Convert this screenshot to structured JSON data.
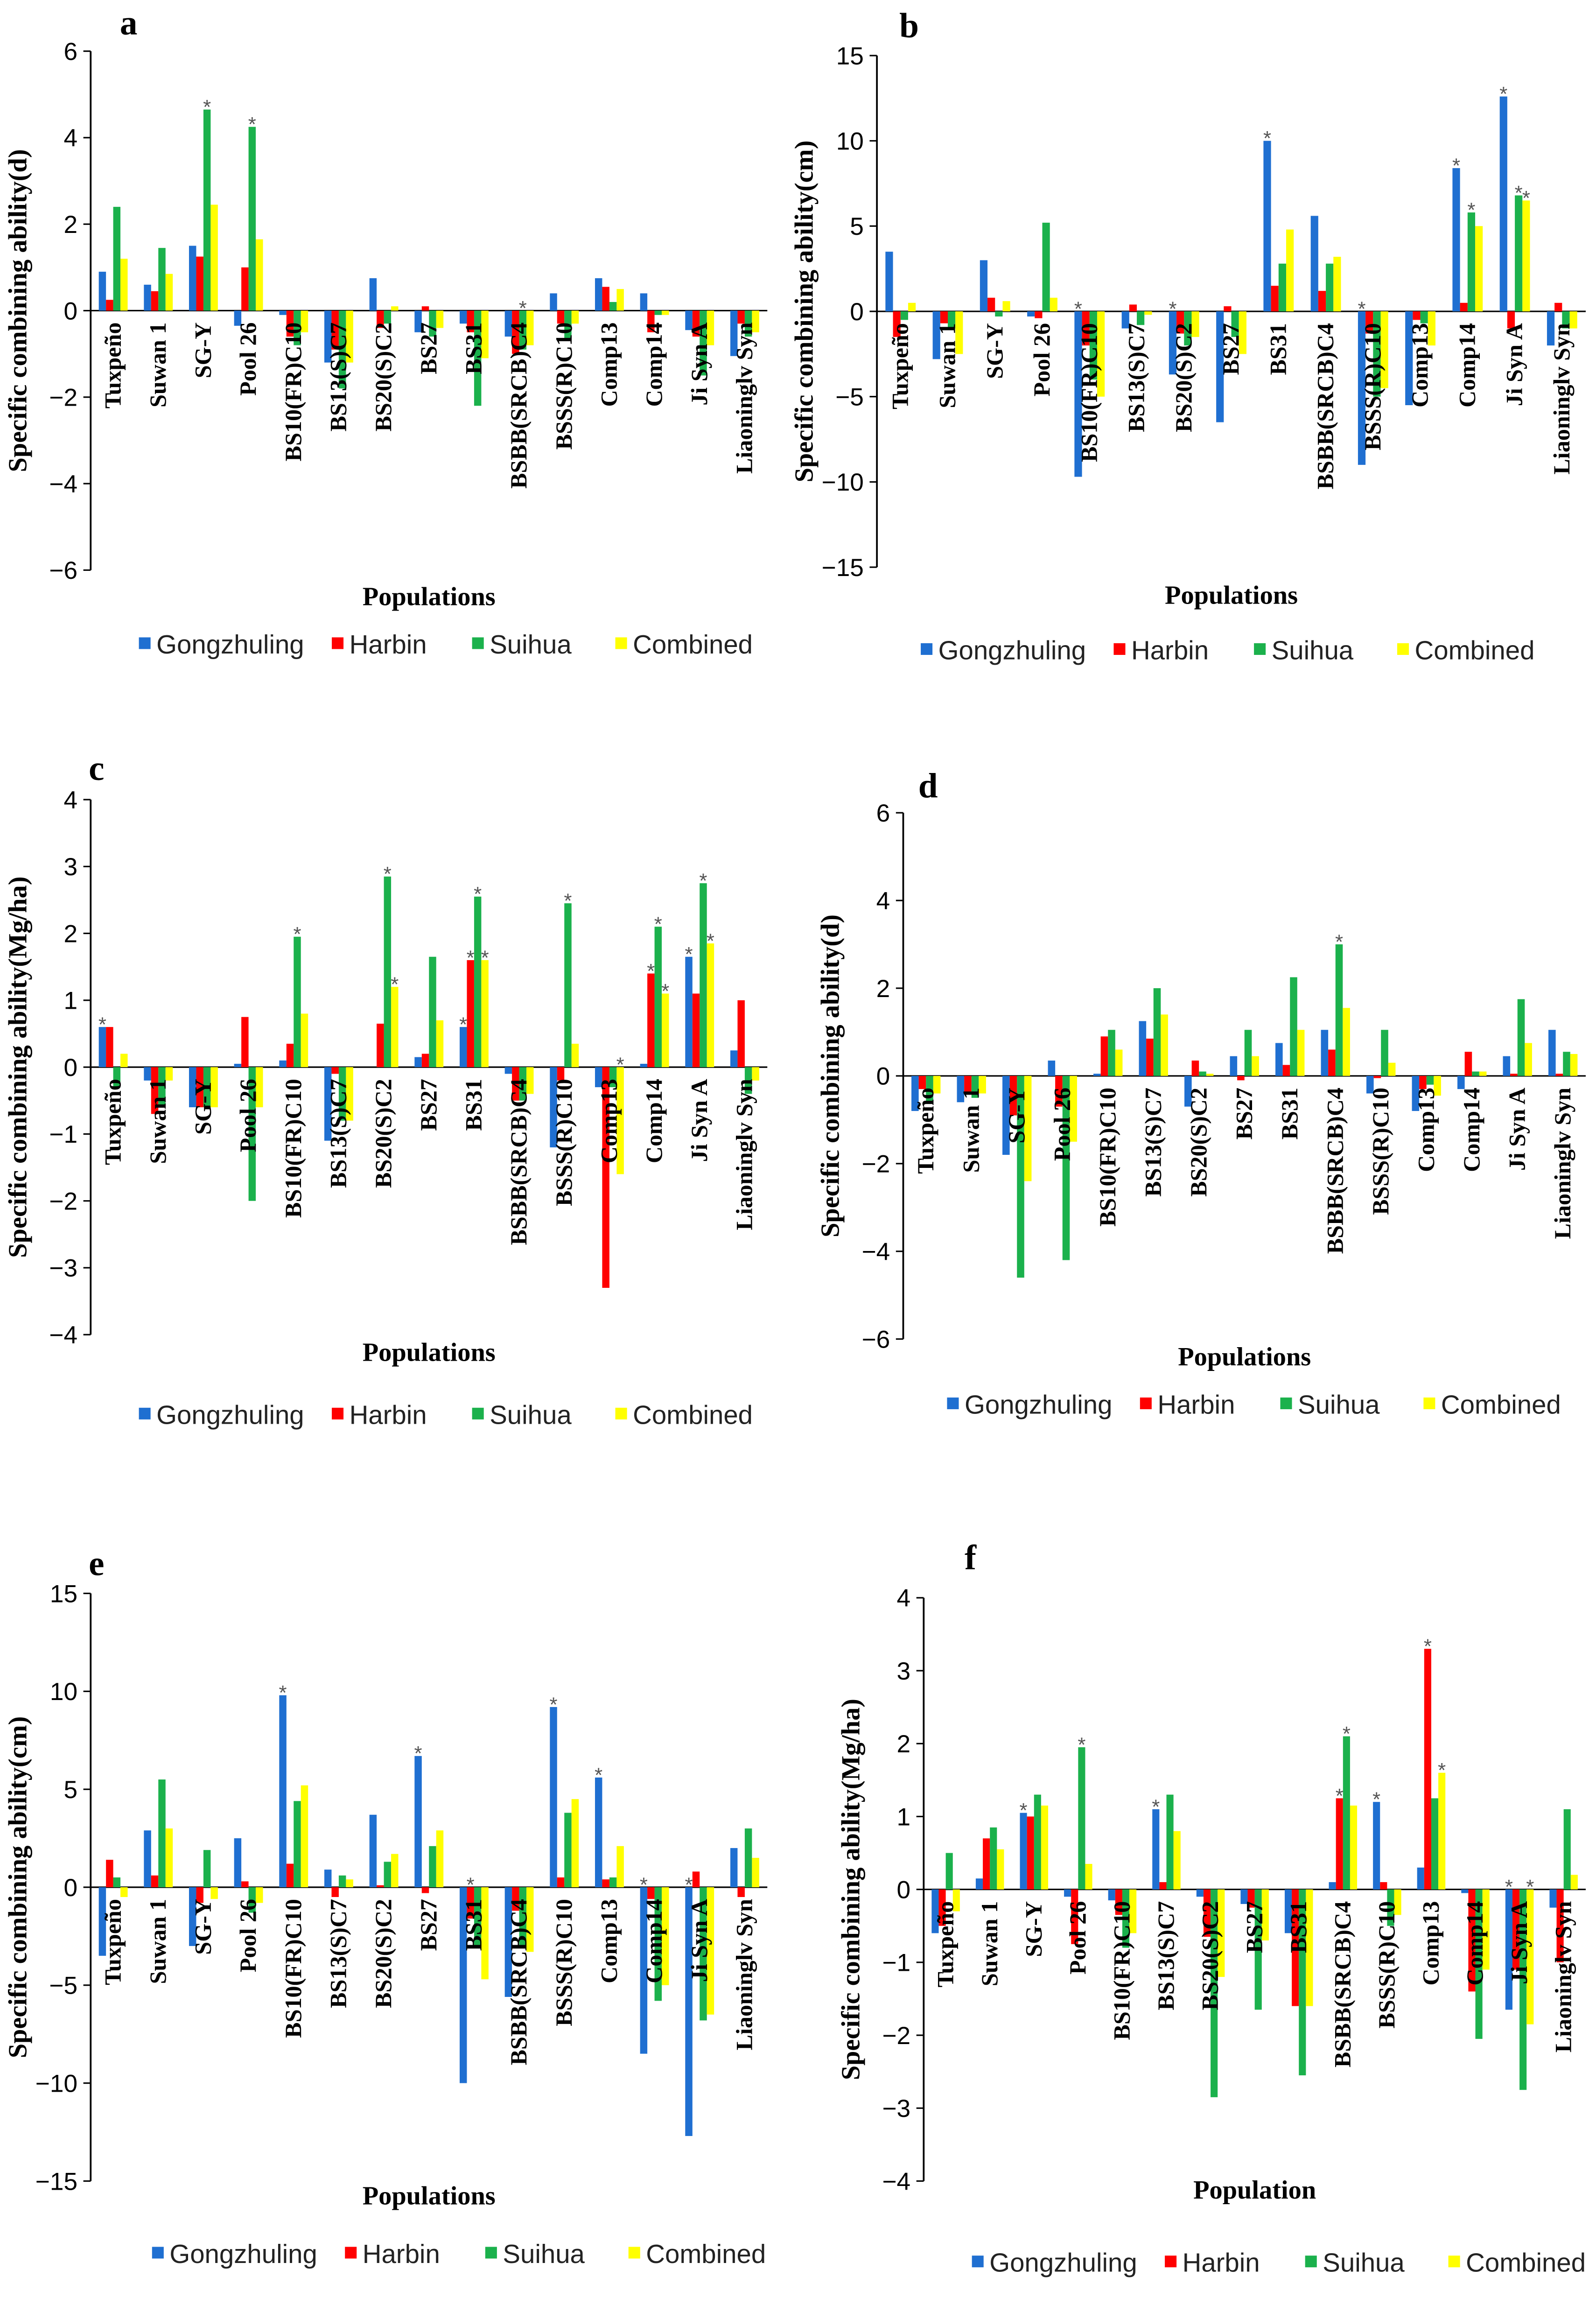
{
  "colors": {
    "Gongzhuling": "#1f6fd1",
    "Harbin": "#ff0000",
    "Suihua": "#1bb14c",
    "Combined": "#ffff00"
  },
  "series_names": [
    "Gongzhuling",
    "Harbin",
    "Suihua",
    "Combined"
  ],
  "chart_data": [
    {
      "type": "bar",
      "panel": "a",
      "ylabel": "Specific combining ability(d)",
      "xlabel": "Populations",
      "ylim": [
        -6,
        6
      ],
      "yticks": [
        -6,
        -4,
        -2,
        0,
        2,
        4,
        6
      ],
      "legend": "bottom",
      "categories": [
        "Tuxpeño",
        "Suwan 1",
        "SG-Y",
        "Pool 26",
        "BS10(FR)C10",
        "BS13(S)C7",
        "BS20(S)C2",
        "BS27",
        "BS31",
        "BSBB(SRCB)C4",
        "BSSS(R)C10",
        "Comp13",
        "Comp14",
        "Ji Syn A",
        "Liaoninglv Syn"
      ],
      "series": [
        {
          "name": "Gongzhuling",
          "values": [
            0.9,
            0.6,
            1.5,
            -0.35,
            -0.1,
            -1.2,
            0.75,
            -0.5,
            -0.3,
            -0.6,
            0.4,
            0.75,
            0.4,
            -0.45,
            -1.05
          ]
        },
        {
          "name": "Harbin",
          "values": [
            0.25,
            0.45,
            1.25,
            1.0,
            -0.6,
            -0.9,
            -0.4,
            0.1,
            -0.5,
            -1.0,
            -0.3,
            0.55,
            -0.5,
            -0.6,
            -0.3
          ]
        },
        {
          "name": "Suihua",
          "values": [
            2.4,
            1.45,
            4.65,
            4.25,
            -0.8,
            -1.8,
            -0.3,
            -0.6,
            -2.2,
            -0.9,
            -0.7,
            0.2,
            -0.1,
            -1.5,
            -0.6
          ]
        },
        {
          "name": "Combined",
          "values": [
            1.2,
            0.85,
            2.45,
            1.65,
            -0.5,
            -1.2,
            0.1,
            -0.4,
            -1.1,
            -0.8,
            -0.3,
            0.5,
            -0.1,
            -0.8,
            -0.5
          ]
        }
      ],
      "significant": [
        [
          2,
          2
        ],
        [
          3,
          2
        ],
        [
          9,
          2
        ]
      ]
    },
    {
      "type": "bar",
      "panel": "b",
      "ylabel": "Specific combining ability(cm)",
      "xlabel": "Populations",
      "ylim": [
        -15,
        15
      ],
      "yticks": [
        -15,
        -10,
        -5,
        0,
        5,
        10,
        15
      ],
      "legend": "bottom",
      "categories": [
        "Tuxpeño",
        "Suwan 1",
        "SG-Y",
        "Pool 26",
        "BS10(FR)C10",
        "BS13(S)C7",
        "BS20(S)C2",
        "BS27",
        "BS31",
        "BSBB(SRCB)C4",
        "BSSS(R)C10",
        "Comp13",
        "Comp14",
        "Ji Syn A",
        "Liaoninglv Syn"
      ],
      "series": [
        {
          "name": "Gongzhuling",
          "values": [
            3.5,
            -2.8,
            3.0,
            -0.3,
            -9.7,
            -1.0,
            -3.7,
            -6.5,
            10.0,
            5.6,
            -9.0,
            -5.5,
            8.4,
            12.6,
            -2.0
          ]
        },
        {
          "name": "Harbin",
          "values": [
            -1.5,
            -0.7,
            0.8,
            -0.4,
            -2.0,
            0.4,
            -1.3,
            0.3,
            1.5,
            1.2,
            -1.3,
            -0.5,
            0.5,
            -1.0,
            0.5
          ]
        },
        {
          "name": "Suihua",
          "values": [
            -0.5,
            -1.0,
            -0.3,
            5.2,
            -4.0,
            -0.8,
            -2.0,
            -1.5,
            2.8,
            2.8,
            -5.0,
            -0.7,
            5.8,
            6.8,
            -1.0
          ]
        },
        {
          "name": "Combined",
          "values": [
            0.5,
            -2.5,
            0.6,
            0.8,
            -5.0,
            -0.2,
            -1.5,
            -2.5,
            4.8,
            3.2,
            -4.5,
            -2.0,
            5.0,
            6.5,
            -1.0
          ]
        }
      ],
      "significant": [
        [
          4,
          0
        ],
        [
          8,
          0
        ],
        [
          10,
          0
        ],
        [
          12,
          0
        ],
        [
          12,
          2
        ],
        [
          13,
          0
        ],
        [
          13,
          2
        ],
        [
          13,
          3
        ],
        [
          6,
          0
        ]
      ]
    },
    {
      "type": "bar",
      "panel": "c",
      "ylabel": "Specific combining ability(Mg/ha)",
      "xlabel": "Populations",
      "ylim": [
        -4,
        4
      ],
      "yticks": [
        -4,
        -3,
        -2,
        -1,
        0,
        1,
        2,
        3,
        4
      ],
      "legend": "bottom",
      "categories": [
        "Tuxpeño",
        "Suwan 1",
        "SG-Y",
        "Pool 26",
        "BS10(FR)C10",
        "BS13(S)C7",
        "BS20(S)C2",
        "BS27",
        "BS31",
        "BSBB(SRCB)C4",
        "BSSS(R)C10",
        "Comp13",
        "Comp14",
        "Ji Syn A",
        "Liaoninglv Syn"
      ],
      "series": [
        {
          "name": "Gongzhuling",
          "values": [
            0.6,
            -0.2,
            -0.6,
            0.05,
            0.1,
            -1.1,
            0.0,
            0.15,
            0.6,
            -0.1,
            -1.2,
            -0.3,
            0.05,
            1.65,
            0.25
          ]
        },
        {
          "name": "Harbin",
          "values": [
            0.6,
            -0.7,
            -0.6,
            0.75,
            0.35,
            -0.1,
            0.65,
            0.2,
            1.6,
            -0.5,
            -0.2,
            -3.3,
            1.4,
            1.1,
            1.0
          ]
        },
        {
          "name": "Suihua",
          "values": [
            -0.3,
            -0.6,
            -0.6,
            -2.0,
            1.95,
            -0.8,
            2.85,
            1.65,
            2.55,
            -0.5,
            2.45,
            -0.3,
            2.1,
            2.75,
            -0.4
          ]
        },
        {
          "name": "Combined",
          "values": [
            0.2,
            -0.2,
            -0.6,
            -0.6,
            0.8,
            -0.8,
            1.2,
            0.7,
            1.6,
            -0.4,
            0.35,
            -1.6,
            1.1,
            1.85,
            -0.2
          ]
        }
      ],
      "significant": [
        [
          0,
          0
        ],
        [
          4,
          2
        ],
        [
          6,
          2
        ],
        [
          6,
          3
        ],
        [
          8,
          0
        ],
        [
          8,
          1
        ],
        [
          8,
          2
        ],
        [
          8,
          3
        ],
        [
          10,
          2
        ],
        [
          11,
          3
        ],
        [
          12,
          1
        ],
        [
          12,
          2
        ],
        [
          12,
          3
        ],
        [
          13,
          0
        ],
        [
          13,
          2
        ],
        [
          13,
          3
        ]
      ]
    },
    {
      "type": "bar",
      "panel": "d",
      "ylabel": "Specific combining ability(d)",
      "xlabel": "Populations",
      "ylim": [
        -6,
        6
      ],
      "yticks": [
        -6,
        -4,
        -2,
        0,
        2,
        4,
        6
      ],
      "legend": "bottom",
      "categories": [
        "Tuxpeño",
        "Suwan 1",
        "SG-Y",
        "Pool 26",
        "BS10(FR)C10",
        "BS13(S)C7",
        "BS20(S)C2",
        "BS27",
        "BS31",
        "BSBB(SRCB)C4",
        "BSSS(R)C10",
        "Comp13",
        "Comp14",
        "Ji Syn A",
        "Liaoninglv Syn"
      ],
      "series": [
        {
          "name": "Gongzhuling",
          "values": [
            -0.8,
            -0.6,
            -1.8,
            0.35,
            0.05,
            1.25,
            -0.7,
            0.45,
            0.75,
            1.05,
            -0.4,
            -0.8,
            -0.3,
            0.45,
            1.05
          ]
        },
        {
          "name": "Harbin",
          "values": [
            -0.3,
            -0.4,
            -0.9,
            -0.7,
            0.9,
            0.85,
            0.35,
            -0.1,
            0.25,
            0.6,
            -0.05,
            -0.3,
            0.55,
            0.05,
            0.05
          ]
        },
        {
          "name": "Suihua",
          "values": [
            -0.6,
            -0.5,
            -4.6,
            -4.2,
            1.05,
            2.0,
            0.1,
            1.05,
            2.25,
            3.0,
            1.05,
            -0.2,
            0.1,
            1.75,
            0.55
          ]
        },
        {
          "name": "Combined",
          "values": [
            -0.4,
            -0.4,
            -2.4,
            -1.5,
            0.6,
            1.4,
            0.05,
            0.45,
            1.05,
            1.55,
            0.3,
            -0.45,
            0.1,
            0.75,
            0.5
          ]
        }
      ],
      "significant": [
        [
          9,
          2
        ]
      ]
    },
    {
      "type": "bar",
      "panel": "e",
      "ylabel": "Specific combining ability(cm)",
      "xlabel": "Populations",
      "ylim": [
        -15,
        15
      ],
      "yticks": [
        -15,
        -10,
        -5,
        0,
        5,
        10,
        15
      ],
      "legend": "bottom",
      "categories": [
        "Tuxpeño",
        "Suwan 1",
        "SG-Y",
        "Pool 26",
        "BS10(FR)C10",
        "BS13(S)C7",
        "BS20(S)C2",
        "BS27",
        "BS31",
        "BSBB(SRCB)C4",
        "BSSS(R)C10",
        "Comp13",
        "Comp14",
        "Ji Syn A",
        "Liaoninglv Syn"
      ],
      "series": [
        {
          "name": "Gongzhuling",
          "values": [
            -3.5,
            2.9,
            -3.0,
            2.5,
            9.8,
            0.9,
            3.7,
            6.7,
            -10.0,
            -5.6,
            9.2,
            5.6,
            -8.5,
            -12.7,
            2.0
          ]
        },
        {
          "name": "Harbin",
          "values": [
            1.4,
            0.6,
            -0.8,
            0.3,
            1.2,
            -0.5,
            0.1,
            -0.3,
            -1.6,
            -1.2,
            0.5,
            0.4,
            -0.6,
            0.8,
            -0.5
          ]
        },
        {
          "name": "Suihua",
          "values": [
            0.5,
            5.5,
            1.9,
            -1.3,
            4.4,
            0.6,
            1.3,
            2.1,
            -3.0,
            -3.0,
            3.8,
            0.5,
            -5.8,
            -6.8,
            3.0
          ]
        },
        {
          "name": "Combined",
          "values": [
            -0.5,
            3.0,
            -0.6,
            -0.8,
            5.2,
            0.4,
            1.7,
            2.9,
            -4.7,
            -3.3,
            4.5,
            2.1,
            -5.0,
            -6.5,
            1.5
          ]
        }
      ],
      "significant": [
        [
          4,
          0
        ],
        [
          7,
          0
        ],
        [
          8,
          1
        ],
        [
          10,
          0
        ],
        [
          11,
          0
        ],
        [
          12,
          0
        ],
        [
          13,
          0
        ]
      ]
    },
    {
      "type": "bar",
      "panel": "f",
      "ylabel": "Specific combining ability(Mg/ha)",
      "xlabel": "Population",
      "ylim": [
        -4,
        4
      ],
      "yticks": [
        -4,
        -3,
        -2,
        -1,
        0,
        1,
        2,
        3,
        4
      ],
      "legend": "bottom",
      "categories": [
        "Tuxpeño",
        "Suwan 1",
        "SG-Y",
        "Pool 26",
        "BS10(FR)C10",
        "BS13(S)C7",
        "BS20(S)C2",
        "BS27",
        "BS31",
        "BSBB(SRCB)C4",
        "BSSS(R)C10",
        "Comp13",
        "Comp14",
        "Ji Syn A",
        "Liaoninglv Syn"
      ],
      "series": [
        {
          "name": "Gongzhuling",
          "values": [
            -0.6,
            0.15,
            1.05,
            -0.1,
            -0.15,
            1.1,
            -0.1,
            -0.2,
            -0.6,
            0.1,
            1.2,
            0.3,
            -0.05,
            -1.65,
            -0.25
          ]
        },
        {
          "name": "Harbin",
          "values": [
            -0.5,
            0.7,
            1.0,
            -0.75,
            -0.35,
            0.1,
            -0.65,
            -0.25,
            -1.6,
            1.25,
            0.1,
            3.3,
            -1.4,
            -1.1,
            -1.0
          ]
        },
        {
          "name": "Suihua",
          "values": [
            0.5,
            0.85,
            1.3,
            1.95,
            -0.8,
            1.3,
            -2.85,
            -1.65,
            -2.55,
            2.1,
            -0.5,
            1.25,
            -2.05,
            -2.75,
            1.1
          ]
        },
        {
          "name": "Combined",
          "values": [
            -0.3,
            0.55,
            1.15,
            0.35,
            -0.6,
            0.8,
            -1.2,
            -0.7,
            -1.6,
            1.15,
            -0.35,
            1.6,
            -1.1,
            -1.85,
            0.2
          ]
        }
      ],
      "significant": [
        [
          2,
          0
        ],
        [
          3,
          2
        ],
        [
          5,
          0
        ],
        [
          9,
          1
        ],
        [
          9,
          2
        ],
        [
          10,
          0
        ],
        [
          11,
          1
        ],
        [
          11,
          3
        ],
        [
          13,
          0
        ],
        [
          13,
          3
        ]
      ]
    }
  ]
}
